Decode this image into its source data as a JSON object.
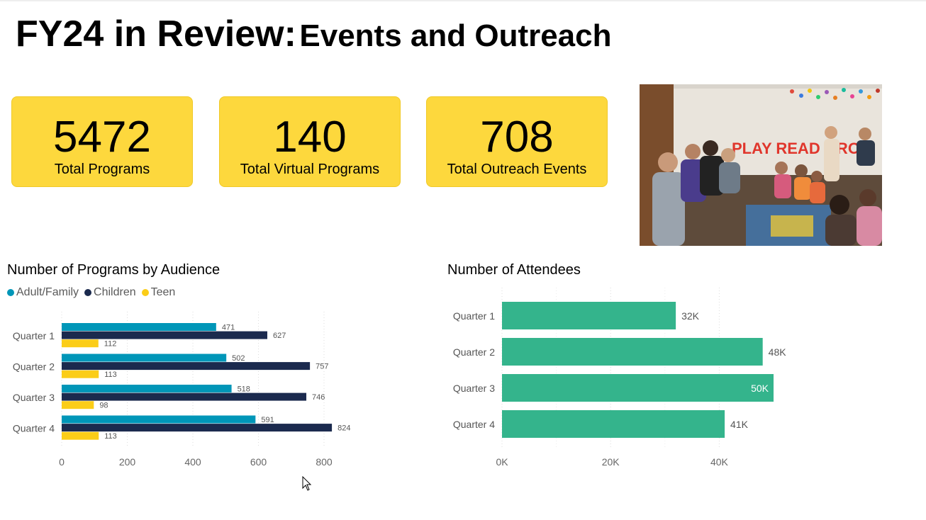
{
  "page": {
    "title_part1": "FY24 in Review:",
    "title_part2": "Events and Outreach"
  },
  "cards": [
    {
      "value": "5472",
      "label": "Total Programs"
    },
    {
      "value": "140",
      "label": "Total Virtual Programs"
    },
    {
      "value": "708",
      "label": "Total Outreach Events"
    }
  ],
  "photo": {
    "banner_text": "PLAY READ GROW"
  },
  "chart_data": [
    {
      "type": "bar",
      "orientation": "horizontal",
      "title": "Number of Programs by Audience",
      "categories": [
        "Quarter 1",
        "Quarter 2",
        "Quarter 3",
        "Quarter 4"
      ],
      "series": [
        {
          "name": "Adult/Family",
          "color": "#0096b8",
          "values": [
            471,
            502,
            518,
            591
          ]
        },
        {
          "name": "Children",
          "color": "#1b2a4e",
          "values": [
            627,
            757,
            746,
            824
          ]
        },
        {
          "name": "Teen",
          "color": "#fbcd18",
          "values": [
            112,
            113,
            98,
            113
          ]
        }
      ],
      "xlim": [
        0,
        800
      ],
      "xticks": [
        "0",
        "200",
        "400",
        "600",
        "800"
      ],
      "grid": true,
      "legend_position": "top-left"
    },
    {
      "type": "bar",
      "orientation": "horizontal",
      "title": "Number of Attendees",
      "categories": [
        "Quarter 1",
        "Quarter 2",
        "Quarter 3",
        "Quarter 4"
      ],
      "series": [
        {
          "color": "#34b48c",
          "values": [
            32000,
            48000,
            50000,
            41000
          ],
          "labels": [
            "32K",
            "48K",
            "50K",
            "41K"
          ]
        }
      ],
      "xlim": [
        0,
        50000
      ],
      "xticks": [
        "0K",
        "20K",
        "40K"
      ],
      "grid": true
    }
  ]
}
